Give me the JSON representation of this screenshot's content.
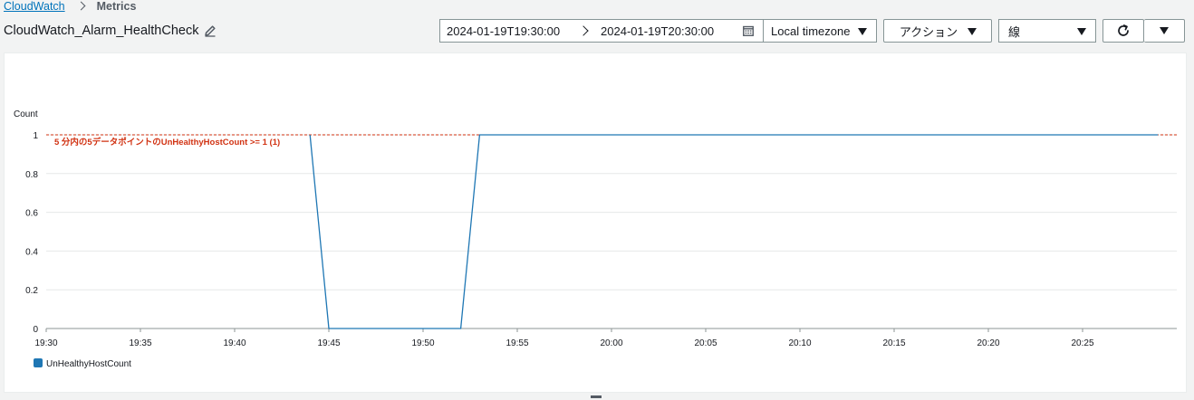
{
  "breadcrumb": {
    "root": "CloudWatch",
    "current": "Metrics"
  },
  "page": {
    "title": "CloudWatch_Alarm_HealthCheck",
    "edit_icon": "pencil-icon"
  },
  "toolbar": {
    "start_time": "2024-01-19T19:30:00",
    "end_time": "2024-01-19T20:30:00",
    "calendar_icon": "calendar-icon",
    "timezone": "Local timezone",
    "actions_label": "アクション",
    "graph_type": "線",
    "refresh_icon": "refresh-icon",
    "more_icon": "caret-down-icon"
  },
  "chart_data": {
    "type": "line",
    "ylabel": "Count",
    "ylim": [
      0,
      1
    ],
    "y_ticks": [
      "0",
      "0.2",
      "0.4",
      "0.6",
      "0.8",
      "1"
    ],
    "x_ticks": [
      "19:30",
      "19:35",
      "19:40",
      "19:45",
      "19:50",
      "19:55",
      "20:00",
      "20:05",
      "20:10",
      "20:15",
      "20:20",
      "20:25"
    ],
    "xlim": [
      "19:30",
      "20:29"
    ],
    "grid": true,
    "legend_position": "bottom-left",
    "series": [
      {
        "name": "UnHealthyHostCount",
        "color": "#1f77b4",
        "x": [
          "19:44",
          "19:45",
          "19:52",
          "19:53",
          "20:29"
        ],
        "y": [
          1,
          0,
          0,
          1,
          1
        ]
      }
    ],
    "threshold": {
      "value": 1,
      "label": "5 分内の5データポイントのUnHealthyHostCount >= 1 (1)",
      "color": "#d13212",
      "style": "dashed"
    }
  }
}
